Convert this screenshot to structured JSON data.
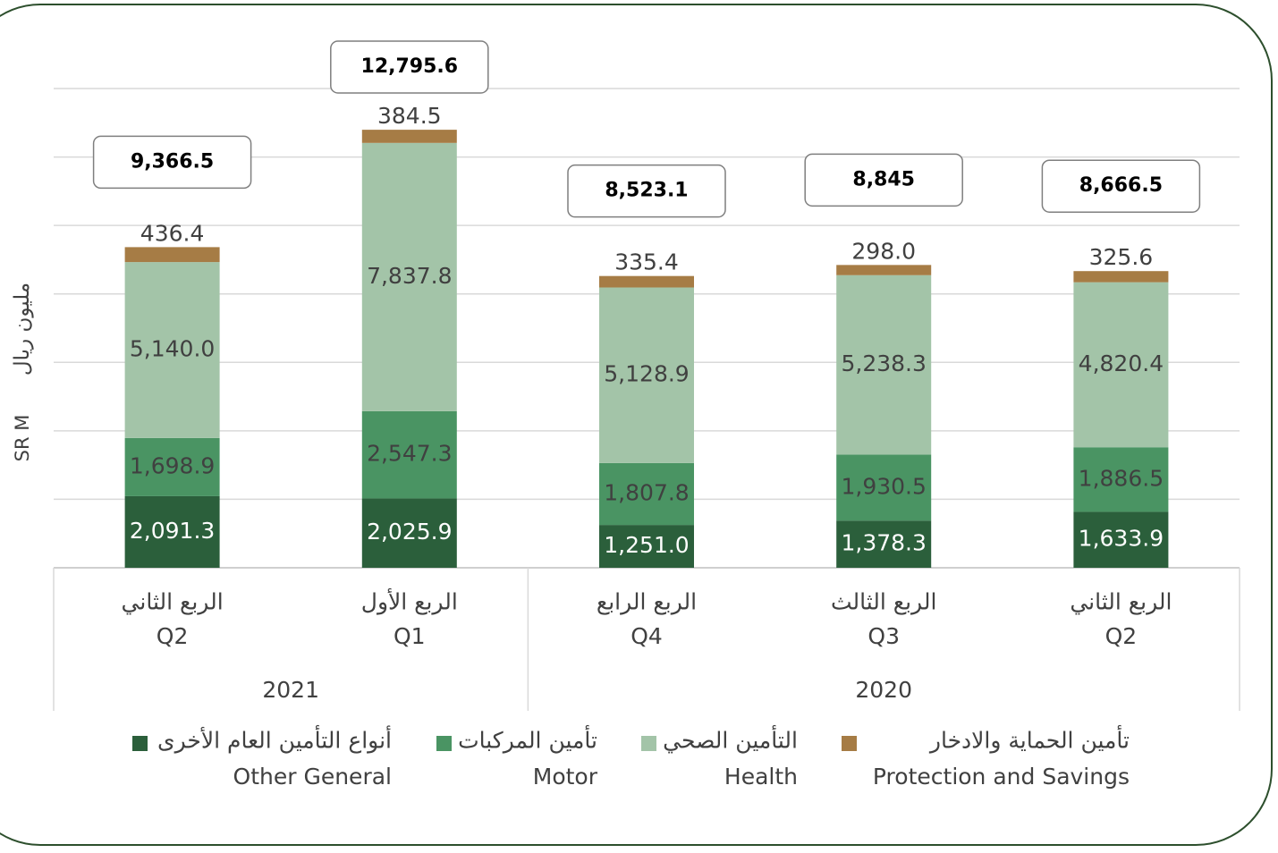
{
  "chart_data": {
    "type": "stacked_bar",
    "y_label": {
      "en": "SR M",
      "ar": "مليون ريال"
    },
    "categories": [
      [
        "الربع الثاني",
        "Q2"
      ],
      [
        "الربع الأول",
        "Q1"
      ],
      [
        "الربع الرابع",
        "Q4"
      ],
      [
        "الربع الثالث",
        "Q3"
      ],
      [
        "الربع الثاني",
        "Q2"
      ]
    ],
    "years": [
      "2021",
      "2021",
      "2020",
      "2020",
      "2020"
    ],
    "series": [
      {
        "name": "Other General",
        "name_ar": "أنواع التأمين العام الأخرى",
        "color": "#2b5f3b",
        "label_color": "#ffffff",
        "values": [
          2091.3,
          2025.9,
          1251.0,
          1378.3,
          1633.9
        ],
        "value_labels": [
          "2,091.3",
          "2,025.9",
          "1,251.0",
          "1,378.3",
          "1,633.9"
        ]
      },
      {
        "name": "Motor",
        "name_ar": "تأمين المركبات",
        "color": "#4a9463",
        "label_color": "#404040",
        "values": [
          1698.9,
          2547.3,
          1807.8,
          1930.5,
          1886.5
        ],
        "value_labels": [
          "1,698.9",
          "2,547.3",
          "1,807.8",
          "1,930.5",
          "1,886.5"
        ]
      },
      {
        "name": "Health",
        "name_ar": "التأمين الصحي",
        "color": "#a3c4a8",
        "label_color": "#404040",
        "values": [
          5140.0,
          7837.8,
          5128.9,
          5238.3,
          4820.4
        ],
        "value_labels": [
          "5,140.0",
          "7,837.8",
          "5,128.9",
          "5,238.3",
          "4,820.4"
        ]
      },
      {
        "name": "Protection and Savings",
        "name_ar": "تأمين الحماية والادخار",
        "color": "#a67c45",
        "label_color": "#404040",
        "values": [
          436.4,
          384.5,
          335.4,
          298.0,
          325.6
        ],
        "value_labels": [
          "436.4",
          "384.5",
          "335.4",
          "298.0",
          "325.6"
        ]
      }
    ],
    "totals": [
      9366.5,
      12795.6,
      8523.1,
      8845,
      8666.5
    ],
    "total_labels": [
      "9,366.5",
      "12,795.6",
      "8,523.1",
      "8,845",
      "8,666.5"
    ],
    "ylim": [
      0,
      14000
    ],
    "yticks": [
      0,
      2000,
      4000,
      6000,
      8000,
      10000,
      12000,
      14000
    ],
    "grid": true
  }
}
